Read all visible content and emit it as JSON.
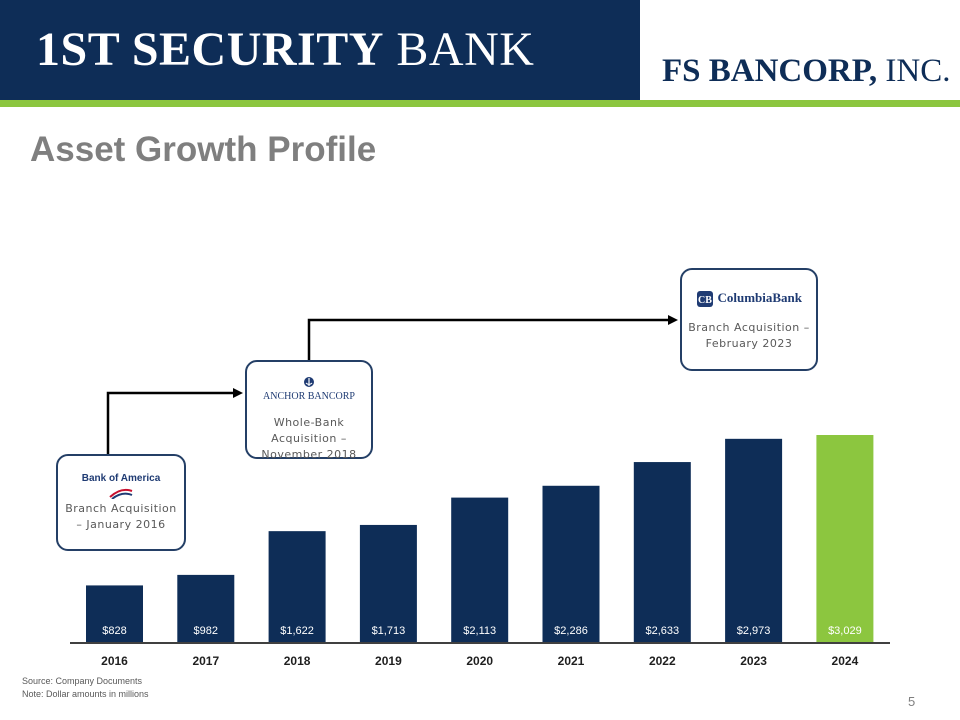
{
  "header": {
    "left_logo_bold": "1ST SECURITY",
    "left_logo_regular": "BANK",
    "right_logo_bold": "FS BANCORP,",
    "right_logo_regular": "INC."
  },
  "title": "Asset Growth Profile",
  "colors": {
    "navy": "#0e2d57",
    "green": "#8cc63f",
    "title_gray": "#7f7f7f"
  },
  "callouts": [
    {
      "logo_text": "Bank of America",
      "caption": "Branch Acquisition – January 2016"
    },
    {
      "logo_text": "ANCHOR BANCORP",
      "caption": "Whole-Bank Acquisition – November 2018"
    },
    {
      "logo_text": "ColumbiaBank",
      "caption": "Branch Acquisition – February 2023"
    }
  ],
  "chart_data": {
    "type": "bar",
    "categories": [
      "2016",
      "2017",
      "2018",
      "2019",
      "2020",
      "2021",
      "2022",
      "2023",
      "2024"
    ],
    "values": [
      828,
      982,
      1622,
      1713,
      2113,
      2286,
      2633,
      2973,
      3029
    ],
    "value_labels": [
      "$828",
      "$982",
      "$1,622",
      "$1,713",
      "$2,113",
      "$2,286",
      "$2,633",
      "$2,973",
      "$3,029"
    ],
    "highlight_index": 8,
    "bar_color": "#0e2d57",
    "highlight_color": "#8cc63f",
    "title": "",
    "xlabel": "",
    "ylabel": "",
    "ylim": [
      0,
      3400
    ],
    "grid": false,
    "legend": "none"
  },
  "footnotes": {
    "source": "Source: Company Documents",
    "note": "Note: Dollar amounts in millions"
  },
  "page_number": "5"
}
